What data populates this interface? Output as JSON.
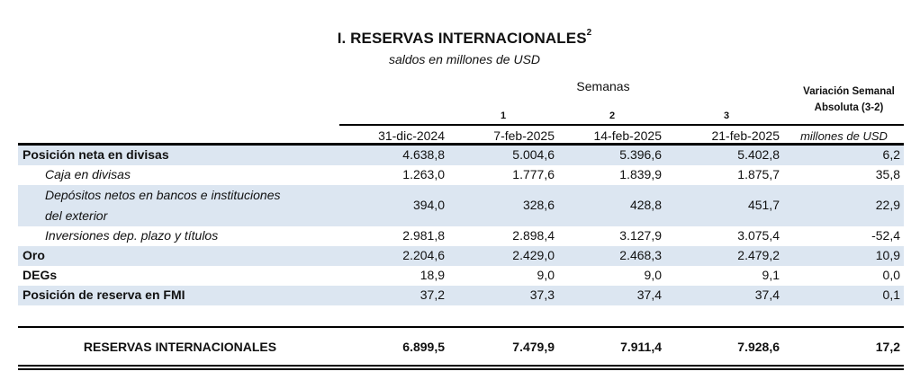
{
  "header": {
    "title": "I. RESERVAS INTERNACIONALES",
    "title_footnote": "2",
    "subtitle": "saldos en millones de USD",
    "group_label": "Semanas",
    "variation_label": "Variación Semanal Absoluta (3-2)",
    "week_numbers": [
      "1",
      "2",
      "3"
    ],
    "columns": [
      "31-dic-2024",
      "7-feb-2025",
      "14-feb-2025",
      "21-feb-2025",
      "millones de USD"
    ]
  },
  "rows": [
    {
      "label": "Posición neta en divisas",
      "values": [
        "4.638,8",
        "5.004,6",
        "5.396,6",
        "5.402,8",
        "6,2"
      ]
    },
    {
      "label": "Caja en divisas",
      "values": [
        "1.263,0",
        "1.777,6",
        "1.839,9",
        "1.875,7",
        "35,8"
      ]
    },
    {
      "label": "Depósitos netos en bancos e instituciones",
      "label2": "del exterior",
      "values": [
        "394,0",
        "328,6",
        "428,8",
        "451,7",
        "22,9"
      ]
    },
    {
      "label": "Inversiones dep. plazo y títulos",
      "values": [
        "2.981,8",
        "2.898,4",
        "3.127,9",
        "3.075,4",
        "-52,4"
      ]
    },
    {
      "label": "Oro",
      "values": [
        "2.204,6",
        "2.429,0",
        "2.468,3",
        "2.479,2",
        "10,9"
      ]
    },
    {
      "label": "DEGs",
      "values": [
        "18,9",
        "9,0",
        "9,0",
        "9,1",
        "0,0"
      ]
    },
    {
      "label": "Posición de reserva en FMI",
      "values": [
        "37,2",
        "37,3",
        "37,4",
        "37,4",
        "0,1"
      ]
    }
  ],
  "total": {
    "label": "RESERVAS INTERNACIONALES",
    "values": [
      "6.899,5",
      "7.479,9",
      "7.911,4",
      "7.928,6",
      "17,2"
    ]
  },
  "colors": {
    "band": "#dce6f1",
    "rule": "#000000"
  }
}
